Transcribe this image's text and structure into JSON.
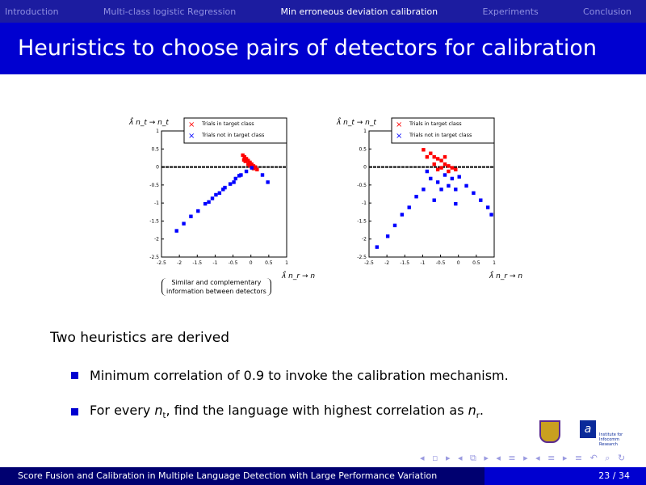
{
  "nav": {
    "items": [
      "Introduction",
      "Multi-class logistic Regression",
      "Min erroneous deviation calibration",
      "Experiments",
      "Conclusion"
    ],
    "active": 2
  },
  "title": "Heuristics to choose pairs of detectors for calibration",
  "chart_data": [
    {
      "type": "scatter",
      "xlim": [
        -2.5,
        1
      ],
      "ylim": [
        -2.5,
        1
      ],
      "xticks": [
        "-2.5",
        "-2",
        "-1.5",
        "-1",
        "-0.5",
        "0",
        "0.5",
        "1"
      ],
      "yticks": [
        "1",
        "0.5",
        "0",
        "-0.5",
        "-1",
        "-1.5",
        "-2",
        "-2.5"
      ],
      "xlabel": "λ̂ n_r → n_r",
      "ylabel": "λ̂ n_t → n_t",
      "legend": "top-right",
      "series": [
        {
          "name": "Trials in target class",
          "color": "#ff0000",
          "marker": "x",
          "points": [
            [
              -0.25,
              0.35
            ],
            [
              -0.2,
              0.3
            ],
            [
              -0.15,
              0.25
            ],
            [
              -0.1,
              0.2
            ],
            [
              -0.05,
              0.15
            ],
            [
              0,
              0.1
            ],
            [
              0.05,
              0.05
            ],
            [
              0.1,
              0.02
            ],
            [
              -0.18,
              0.18
            ],
            [
              -0.1,
              0.1
            ],
            [
              0,
              0.02
            ],
            [
              0.15,
              -0.05
            ],
            [
              -0.22,
              0.22
            ],
            [
              -0.05,
              0.05
            ],
            [
              0.05,
              -0.02
            ]
          ]
        },
        {
          "name": "Trials not in target class",
          "color": "#0000ff",
          "marker": "x",
          "points": [
            [
              -2.1,
              -1.75
            ],
            [
              -1.9,
              -1.55
            ],
            [
              -1.7,
              -1.35
            ],
            [
              -1.5,
              -1.2
            ],
            [
              -1.3,
              -1.0
            ],
            [
              -1.1,
              -0.85
            ],
            [
              -0.9,
              -0.7
            ],
            [
              -0.75,
              -0.55
            ],
            [
              -0.6,
              -0.45
            ],
            [
              -0.45,
              -0.3
            ],
            [
              -0.3,
              -0.2
            ],
            [
              -0.15,
              -0.1
            ],
            [
              0,
              0
            ],
            [
              0.3,
              -0.2
            ],
            [
              0.45,
              -0.4
            ],
            [
              -1.0,
              -0.75
            ],
            [
              -0.8,
              -0.6
            ],
            [
              -0.5,
              -0.4
            ],
            [
              -0.35,
              -0.22
            ],
            [
              -1.2,
              -0.95
            ]
          ]
        }
      ]
    },
    {
      "type": "scatter",
      "xlim": [
        -2.5,
        1
      ],
      "ylim": [
        -2.5,
        1
      ],
      "xticks": [
        "-2.5",
        "-2",
        "-1.5",
        "-1",
        "-0.5",
        "0",
        "0.5",
        "1"
      ],
      "yticks": [
        "1",
        "0.5",
        "0",
        "-0.5",
        "-1",
        "-1.5",
        "-2",
        "-2.5"
      ],
      "xlabel": "λ̂ n_r → n_r",
      "ylabel": "λ̂ n_t → n_t",
      "legend": "top-right",
      "series": [
        {
          "name": "Trials in target class",
          "color": "#ff0000",
          "marker": "x",
          "points": [
            [
              -1.0,
              0.5
            ],
            [
              -0.8,
              0.4
            ],
            [
              -0.7,
              0.3
            ],
            [
              -0.6,
              0.25
            ],
            [
              -0.5,
              0.2
            ],
            [
              -0.4,
              0.1
            ],
            [
              -0.3,
              0.05
            ],
            [
              -0.2,
              0.0
            ],
            [
              -0.1,
              -0.05
            ],
            [
              -0.5,
              0.0
            ],
            [
              -0.7,
              0.1
            ],
            [
              -0.3,
              -0.1
            ],
            [
              -0.9,
              0.3
            ],
            [
              -0.6,
              -0.05
            ],
            [
              -0.4,
              0.3
            ]
          ]
        },
        {
          "name": "Trials not in target class",
          "color": "#0000ff",
          "marker": "x",
          "points": [
            [
              -0.8,
              -0.3
            ],
            [
              -0.6,
              -0.4
            ],
            [
              -0.4,
              -0.2
            ],
            [
              -0.2,
              -0.3
            ],
            [
              0,
              -0.25
            ],
            [
              0.2,
              -0.5
            ],
            [
              -0.5,
              -0.6
            ],
            [
              -0.3,
              -0.5
            ],
            [
              -0.1,
              -0.6
            ],
            [
              0.4,
              -0.7
            ],
            [
              0.6,
              -0.9
            ],
            [
              0.8,
              -1.1
            ],
            [
              0.9,
              -1.3
            ],
            [
              -1.0,
              -0.6
            ],
            [
              -1.2,
              -0.8
            ],
            [
              -1.4,
              -1.1
            ],
            [
              -1.6,
              -1.3
            ],
            [
              -1.8,
              -1.6
            ],
            [
              -2.0,
              -1.9
            ],
            [
              -2.3,
              -2.2
            ],
            [
              -0.9,
              -0.1
            ],
            [
              -0.7,
              -0.9
            ],
            [
              -0.1,
              -1.0
            ]
          ]
        }
      ]
    }
  ],
  "note": {
    "line1": "Similar and complementary",
    "line2": "information between detectors"
  },
  "intro": "Two heuristics are derived",
  "bullets": {
    "b1": "Minimum correlation of 0.9 to invoke the calibration mechanism.",
    "b2_pre": "For every ",
    "b2_var1": "n",
    "b2_sub1": "t",
    "b2_mid": ", find the language with highest correlation as ",
    "b2_var2": "n",
    "b2_sub2": "r",
    "b2_post": "."
  },
  "navsym": "◂ ▫ ▸ ◂ ⧉ ▸ ◂ ≡ ▸ ◂ ≡ ▸   ≡   ↶ ⌕ ↻",
  "logo2_text": "a",
  "logo2_caption": "Institute for Infocomm Research",
  "footer": {
    "left": "Score Fusion and Calibration in Multiple Language Detection with Large Performance Variation",
    "right": "23 / 34"
  }
}
